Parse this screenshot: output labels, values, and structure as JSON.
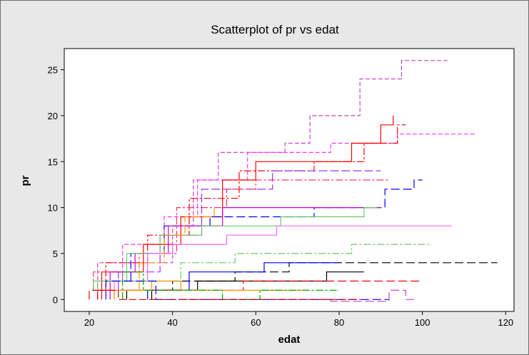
{
  "chart_data": {
    "type": "line",
    "title": "Scatterplot of pr vs edat",
    "xlabel": "edat",
    "ylabel": "pr",
    "xlim": [
      14,
      122
    ],
    "ylim": [
      -1.3,
      27.3
    ],
    "xticks": [
      20,
      40,
      60,
      80,
      100,
      120
    ],
    "yticks": [
      0,
      5,
      10,
      15,
      20,
      25
    ],
    "legend": "none",
    "grid": false,
    "series": [
      {
        "color": "#cc44cc",
        "dash": "6,3",
        "points": [
          [
            22,
            0
          ],
          [
            22,
            4
          ],
          [
            40,
            4
          ],
          [
            40,
            8
          ],
          [
            45,
            8
          ],
          [
            45,
            13
          ],
          [
            51,
            13
          ],
          [
            51,
            16
          ],
          [
            67,
            16
          ],
          [
            67,
            17
          ],
          [
            73,
            17
          ],
          [
            73,
            20
          ],
          [
            85,
            20
          ],
          [
            85,
            24
          ],
          [
            95,
            24
          ],
          [
            95,
            26
          ],
          [
            106,
            26
          ]
        ]
      },
      {
        "color": "#ff33ff",
        "dash": "6,3",
        "points": [
          [
            28,
            2
          ],
          [
            28,
            6
          ],
          [
            38,
            6
          ],
          [
            38,
            9
          ],
          [
            46,
            9
          ],
          [
            46,
            13
          ],
          [
            58,
            13
          ],
          [
            58,
            16
          ],
          [
            78,
            16
          ],
          [
            78,
            17
          ],
          [
            94,
            17
          ],
          [
            94,
            18
          ],
          [
            113,
            18
          ]
        ]
      },
      {
        "color": "#ff0000",
        "dash": "0",
        "points": [
          [
            23,
            0
          ],
          [
            23,
            3
          ],
          [
            33,
            3
          ],
          [
            33,
            6
          ],
          [
            42,
            6
          ],
          [
            42,
            9
          ],
          [
            52,
            9
          ],
          [
            52,
            13
          ],
          [
            60,
            13
          ],
          [
            60,
            15
          ],
          [
            83,
            15
          ],
          [
            83,
            17
          ],
          [
            90,
            17
          ],
          [
            90,
            19
          ],
          [
            93,
            19
          ],
          [
            93,
            20
          ]
        ]
      },
      {
        "color": "#ff0000",
        "dash": "10,3,3,3",
        "points": [
          [
            24,
            1
          ],
          [
            24,
            4
          ],
          [
            34,
            4
          ],
          [
            34,
            7
          ],
          [
            44,
            7
          ],
          [
            44,
            11
          ],
          [
            56,
            11
          ],
          [
            56,
            14
          ],
          [
            74,
            14
          ],
          [
            74,
            15
          ],
          [
            86,
            15
          ],
          [
            86,
            17
          ],
          [
            94,
            17
          ],
          [
            94,
            19
          ],
          [
            96,
            19
          ]
        ]
      },
      {
        "color": "#9933ff",
        "dash": "12,4",
        "points": [
          [
            27,
            1
          ],
          [
            27,
            3
          ],
          [
            37,
            3
          ],
          [
            37,
            7
          ],
          [
            47,
            7
          ],
          [
            47,
            12
          ],
          [
            64,
            12
          ],
          [
            64,
            14
          ],
          [
            90,
            14
          ]
        ]
      },
      {
        "color": "#ff3366",
        "dash": "10,3,3,3",
        "points": [
          [
            21,
            1
          ],
          [
            21,
            3
          ],
          [
            32,
            3
          ],
          [
            32,
            5
          ],
          [
            41,
            5
          ],
          [
            41,
            10
          ],
          [
            53,
            10
          ],
          [
            53,
            12
          ],
          [
            60,
            12
          ],
          [
            60,
            13
          ],
          [
            92,
            13
          ]
        ]
      },
      {
        "color": "#0000ff",
        "dash": "12,5",
        "points": [
          [
            30,
            2
          ],
          [
            30,
            5
          ],
          [
            38,
            5
          ],
          [
            38,
            8
          ],
          [
            49,
            8
          ],
          [
            49,
            9
          ],
          [
            74,
            9
          ],
          [
            74,
            10
          ],
          [
            91,
            10
          ],
          [
            91,
            12
          ],
          [
            98,
            12
          ],
          [
            98,
            13
          ],
          [
            100,
            13
          ]
        ]
      },
      {
        "color": "#cc00cc",
        "dash": "0",
        "points": [
          [
            25,
            0
          ],
          [
            25,
            3
          ],
          [
            31,
            3
          ],
          [
            31,
            5
          ],
          [
            39,
            5
          ],
          [
            39,
            8
          ],
          [
            52,
            8
          ],
          [
            52,
            10
          ],
          [
            90,
            10
          ]
        ]
      },
      {
        "color": "#66cc66",
        "dash": "0",
        "points": [
          [
            21,
            1
          ],
          [
            21,
            2
          ],
          [
            29,
            2
          ],
          [
            29,
            5
          ],
          [
            37,
            5
          ],
          [
            37,
            7
          ],
          [
            47,
            7
          ],
          [
            47,
            8
          ],
          [
            66,
            8
          ],
          [
            66,
            9
          ],
          [
            86,
            9
          ],
          [
            86,
            10
          ],
          [
            89,
            10
          ]
        ]
      },
      {
        "color": "#ff66ff",
        "dash": "0",
        "points": [
          [
            26,
            0
          ],
          [
            26,
            2
          ],
          [
            34,
            2
          ],
          [
            34,
            5
          ],
          [
            40,
            5
          ],
          [
            40,
            6
          ],
          [
            53,
            6
          ],
          [
            53,
            7
          ],
          [
            65,
            7
          ],
          [
            65,
            8
          ],
          [
            107,
            8
          ]
        ]
      },
      {
        "color": "#ff9900",
        "dash": "12,4",
        "points": [
          [
            32,
            1
          ],
          [
            32,
            4
          ],
          [
            38,
            4
          ],
          [
            38,
            7
          ],
          [
            43,
            7
          ],
          [
            43,
            9
          ],
          [
            50,
            9
          ],
          [
            50,
            10
          ]
        ]
      },
      {
        "color": "#66cc66",
        "dash": "10,3,3,3",
        "points": [
          [
            22,
            1
          ],
          [
            22,
            2
          ],
          [
            42,
            2
          ],
          [
            42,
            4
          ],
          [
            55,
            4
          ],
          [
            55,
            5
          ],
          [
            83,
            5
          ],
          [
            83,
            6
          ],
          [
            102,
            6
          ]
        ]
      },
      {
        "color": "#000000",
        "dash": "12,5",
        "points": [
          [
            35,
            0
          ],
          [
            35,
            1
          ],
          [
            40,
            1
          ],
          [
            40,
            2
          ],
          [
            55,
            2
          ],
          [
            55,
            3
          ],
          [
            68,
            3
          ],
          [
            68,
            4
          ],
          [
            118,
            4
          ]
        ]
      },
      {
        "color": "#0000ff",
        "dash": "0",
        "points": [
          [
            34,
            0
          ],
          [
            34,
            1
          ],
          [
            44,
            1
          ],
          [
            44,
            3
          ],
          [
            62,
            3
          ],
          [
            62,
            4
          ],
          [
            80,
            4
          ]
        ]
      },
      {
        "color": "#000000",
        "dash": "0",
        "points": [
          [
            29,
            0
          ],
          [
            29,
            1
          ],
          [
            46,
            1
          ],
          [
            46,
            2
          ],
          [
            77,
            2
          ],
          [
            77,
            3
          ],
          [
            86,
            3
          ]
        ]
      },
      {
        "color": "#ff0000",
        "dash": "12,5",
        "points": [
          [
            20,
            0
          ],
          [
            20,
            1
          ],
          [
            57,
            1
          ],
          [
            57,
            2
          ],
          [
            100,
            2
          ]
        ]
      },
      {
        "color": "#ff9900",
        "dash": "0",
        "points": [
          [
            26,
            0
          ],
          [
            26,
            1
          ],
          [
            35,
            1
          ],
          [
            35,
            2
          ],
          [
            42,
            2
          ],
          [
            42,
            1
          ],
          [
            73,
            1
          ]
        ]
      },
      {
        "color": "#0000ff",
        "dash": "12,5",
        "points": [
          [
            24,
            0
          ],
          [
            24,
            2
          ],
          [
            36,
            2
          ],
          [
            36,
            0
          ],
          [
            92,
            0
          ]
        ]
      },
      {
        "color": "#cc44cc",
        "dash": "12,5",
        "points": [
          [
            43,
            0
          ],
          [
            78,
            0
          ],
          [
            78,
            -0.2
          ],
          [
            92,
            -0.2
          ],
          [
            92,
            1
          ],
          [
            96,
            1
          ],
          [
            96,
            0
          ],
          [
            98,
            0
          ]
        ]
      },
      {
        "color": "#00aa00",
        "dash": "10,3,3,3",
        "points": [
          [
            28,
            0
          ],
          [
            28,
            3
          ],
          [
            33,
            3
          ],
          [
            33,
            1
          ],
          [
            52,
            1
          ],
          [
            52,
            0
          ],
          [
            61,
            0
          ],
          [
            61,
            1
          ],
          [
            80,
            1
          ]
        ]
      },
      {
        "color": "#cc0000",
        "dash": "10,4",
        "points": [
          [
            22,
            0
          ],
          [
            22,
            1
          ],
          [
            27,
            1
          ],
          [
            27,
            0
          ],
          [
            85,
            0
          ]
        ]
      }
    ]
  }
}
